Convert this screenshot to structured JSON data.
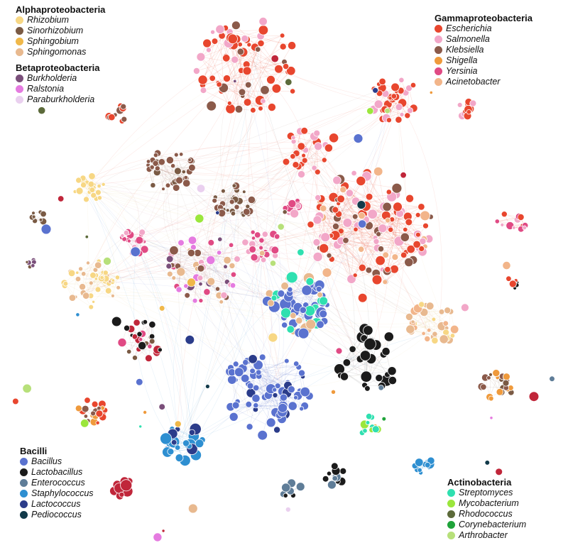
{
  "legend_groups": [
    {
      "title": "Alphaproteobacteria",
      "items": [
        {
          "label": "Rhizobium",
          "color": "#f7d784"
        },
        {
          "label": "Sinorhizobium",
          "color": "#7a5a44"
        },
        {
          "label": "Sphingobium",
          "color": "#f0b84a"
        },
        {
          "label": "Sphingomonas",
          "color": "#e8b98f"
        }
      ]
    },
    {
      "title": "Betaproteobacteria",
      "items": [
        {
          "label": "Burkholderia",
          "color": "#7a4f7a"
        },
        {
          "label": "Ralstonia",
          "color": "#e57be0"
        },
        {
          "label": "Paraburkholderia",
          "color": "#ead0ef"
        }
      ]
    },
    {
      "title": "Gammaproteobacteria",
      "items": [
        {
          "label": "Escherichia",
          "color": "#e8462e"
        },
        {
          "label": "Salmonella",
          "color": "#f2a7c8"
        },
        {
          "label": "Klebsiella",
          "color": "#8b5a4a"
        },
        {
          "label": "Shigella",
          "color": "#ef9a3c"
        },
        {
          "label": "Yersinia",
          "color": "#e04a84"
        },
        {
          "label": "Acinetobacter",
          "color": "#f2b58a"
        }
      ]
    },
    {
      "title": "Bacilli",
      "items": [
        {
          "label": "Bacillus",
          "color": "#5a72cf"
        },
        {
          "label": "Lactobacillus",
          "color": "#1b1b1b"
        },
        {
          "label": "Enterococcus",
          "color": "#5f7d98"
        },
        {
          "label": "Staphylococcus",
          "color": "#2e8fd1"
        },
        {
          "label": "Lactococcus",
          "color": "#2b3c8a"
        },
        {
          "label": "Pediococcus",
          "color": "#123a4a"
        }
      ]
    },
    {
      "title": "Actinobacteria",
      "items": [
        {
          "label": "Streptomyces",
          "color": "#2fe0b0"
        },
        {
          "label": "Mycobacterium",
          "color": "#9be63c"
        },
        {
          "label": "Rhodococcus",
          "color": "#5c6a3a"
        },
        {
          "label": "Corynebacterium",
          "color": "#1fa33a"
        },
        {
          "label": "Arthrobacter",
          "color": "#b7e07a"
        }
      ]
    }
  ]
}
